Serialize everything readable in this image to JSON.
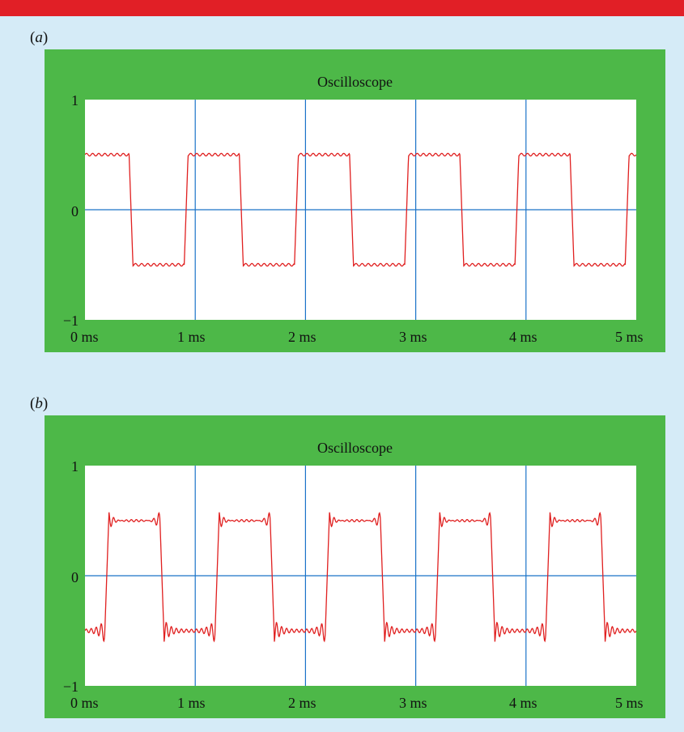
{
  "colors": {
    "header_bar": "#e11f26",
    "background": "#d5ebf7",
    "scope_frame": "#4db848",
    "screen": "#ffffff",
    "grid": "#1a73c8",
    "trace": "#e02020"
  },
  "chart_data": [
    {
      "type": "line",
      "panel_label": "a",
      "title": "Oscilloscope",
      "xlabel": "",
      "ylabel": "",
      "xlim": [
        0,
        5
      ],
      "ylim": [
        -1,
        1
      ],
      "x_tick_labels": [
        "0 ms",
        "1 ms",
        "2 ms",
        "3 ms",
        "4 ms",
        "5 ms"
      ],
      "y_tick_labels": [
        "1",
        "0",
        "−1"
      ],
      "grid": true,
      "x_unit": "ms",
      "waveform": "square",
      "amplitude": 0.5,
      "period_ms": 1.0,
      "first_fall_ms": 0.35,
      "first_rise_ms": 0.9,
      "ripple": "small",
      "overshoot": "none",
      "edge_points_ms": [
        {
          "x": 0.35,
          "y_from": 0.5,
          "y_to": -0.5
        },
        {
          "x": 0.9,
          "y_from": -0.5,
          "y_to": 0.5
        },
        {
          "x": 1.35,
          "y_from": 0.5,
          "y_to": -0.5
        },
        {
          "x": 1.9,
          "y_from": -0.5,
          "y_to": 0.5
        },
        {
          "x": 2.35,
          "y_from": 0.5,
          "y_to": -0.5
        },
        {
          "x": 2.9,
          "y_from": -0.5,
          "y_to": 0.5
        },
        {
          "x": 3.35,
          "y_from": 0.5,
          "y_to": -0.5
        },
        {
          "x": 3.9,
          "y_from": -0.5,
          "y_to": 0.5
        },
        {
          "x": 4.35,
          "y_from": 0.5,
          "y_to": -0.5
        },
        {
          "x": 4.9,
          "y_from": -0.5,
          "y_to": 0.5
        }
      ]
    },
    {
      "type": "line",
      "panel_label": "b",
      "title": "Oscilloscope",
      "xlabel": "",
      "ylabel": "",
      "xlim": [
        0,
        5
      ],
      "ylim": [
        -1,
        1
      ],
      "x_tick_labels": [
        "0 ms",
        "1 ms",
        "2 ms",
        "3 ms",
        "4 ms",
        "5 ms"
      ],
      "y_tick_labels": [
        "1",
        "0",
        "−1"
      ],
      "grid": true,
      "x_unit": "ms",
      "waveform": "square",
      "amplitude": 0.5,
      "period_ms": 1.0,
      "first_fall_ms": 0.68,
      "first_rise_ms": 0.18,
      "ripple": "gibbs",
      "overshoot": 0.1,
      "edge_points_ms": [
        {
          "x": 0.18,
          "y_from": -0.5,
          "y_to": 0.5
        },
        {
          "x": 0.68,
          "y_from": 0.5,
          "y_to": -0.5
        },
        {
          "x": 1.18,
          "y_from": -0.5,
          "y_to": 0.5
        },
        {
          "x": 1.68,
          "y_from": 0.5,
          "y_to": -0.5
        },
        {
          "x": 2.18,
          "y_from": -0.5,
          "y_to": 0.5
        },
        {
          "x": 2.68,
          "y_from": 0.5,
          "y_to": -0.5
        },
        {
          "x": 3.18,
          "y_from": -0.5,
          "y_to": 0.5
        },
        {
          "x": 3.68,
          "y_from": 0.5,
          "y_to": -0.5
        },
        {
          "x": 4.18,
          "y_from": -0.5,
          "y_to": 0.5
        },
        {
          "x": 4.68,
          "y_from": 0.5,
          "y_to": -0.5
        }
      ]
    }
  ]
}
